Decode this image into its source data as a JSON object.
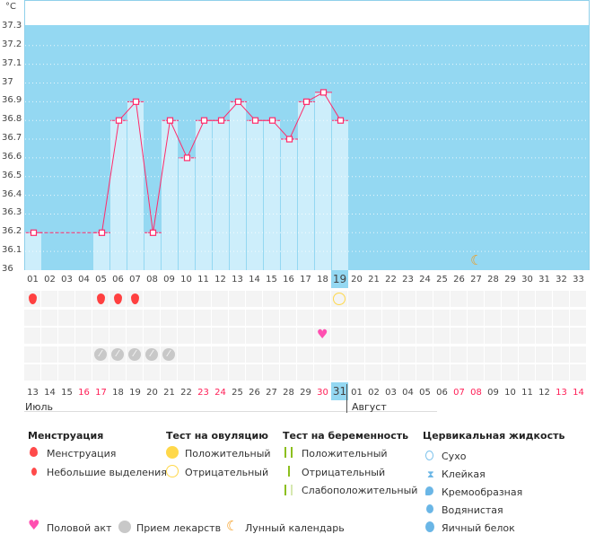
{
  "chart_data": {
    "type": "line",
    "yunit": "°C",
    "ylim": [
      36,
      37.3
    ],
    "yticks": [
      "36",
      "36.1",
      "36.2",
      "36.3",
      "36.4",
      "36.5",
      "36.6",
      "36.7",
      "36.8",
      "36.9",
      "37",
      "37.1",
      "37.2",
      "37.3"
    ],
    "cycle_days": [
      "01",
      "02",
      "03",
      "04",
      "05",
      "06",
      "07",
      "08",
      "09",
      "10",
      "11",
      "12",
      "13",
      "14",
      "15",
      "16",
      "17",
      "18",
      "19",
      "20",
      "21",
      "22",
      "23",
      "24",
      "25",
      "26",
      "27",
      "28",
      "29",
      "30",
      "31",
      "32",
      "33"
    ],
    "temperatures": [
      36.2,
      null,
      null,
      null,
      36.2,
      36.8,
      36.9,
      36.2,
      36.8,
      36.6,
      36.8,
      36.8,
      36.9,
      36.8,
      36.8,
      36.7,
      36.9,
      36.95,
      36.8
    ],
    "current_day": 19,
    "grid": true,
    "colors": {
      "background": "#94d8f2",
      "bar": "#cdeefb",
      "line": "#ff2a6a"
    }
  },
  "calendar": {
    "dates": [
      "13",
      "14",
      "15",
      "16",
      "17",
      "18",
      "19",
      "20",
      "21",
      "22",
      "23",
      "24",
      "25",
      "26",
      "27",
      "28",
      "29",
      "30",
      "31",
      "01",
      "02",
      "03",
      "04",
      "05",
      "06",
      "07",
      "08",
      "09",
      "10",
      "11",
      "12",
      "13",
      "14"
    ],
    "weekend_idx": [
      3,
      4,
      10,
      11,
      17,
      26,
      25,
      31,
      32
    ],
    "months": [
      "Июль",
      "Август"
    ]
  },
  "marks": {
    "menstruation_days": [
      1,
      5,
      6,
      7
    ],
    "ovulation_negative_days": [
      19
    ],
    "intercourse_days": [
      18
    ],
    "medication_days": [
      5,
      6,
      7,
      8,
      9
    ],
    "moon_days": [
      27
    ]
  },
  "legend": {
    "menstruation": {
      "title": "Менструация",
      "items": [
        "Менструация",
        "Небольшие выделения"
      ]
    },
    "ovulation": {
      "title": "Тест на овуляцию",
      "items": [
        "Положительный",
        "Отрицательный"
      ]
    },
    "pregnancy": {
      "title": "Тест на беременность",
      "items": [
        "Положительный",
        "Отрицательный",
        "Слабоположительный"
      ]
    },
    "cervical": {
      "title": "Цервикальная жидкость",
      "items": [
        "Сухо",
        "Клейкая",
        "Кремообразная",
        "Водянистая",
        "Яичный белок"
      ]
    },
    "other": [
      "Половой акт",
      "Прием лекарств",
      "Лунный календарь"
    ]
  }
}
